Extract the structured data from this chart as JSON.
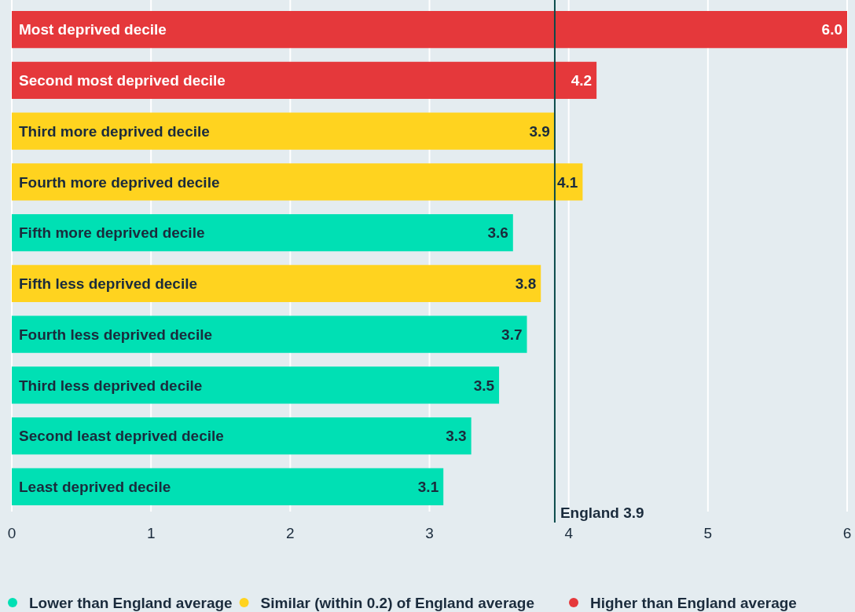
{
  "chart_data": {
    "type": "bar",
    "orientation": "horizontal",
    "stacked": true,
    "categories": [
      "Most deprived decile",
      "Second most deprived decile",
      "Third more deprived decile",
      "Fourth more deprived decile",
      "Fifth more deprived decile",
      "Fifth less deprived decile",
      "Fourth less deprived decile",
      "Third less deprived decile",
      "Second least deprived decile",
      "Least deprived decile"
    ],
    "series": [
      {
        "name": "Lower than England average",
        "color": "#00e0b4",
        "values": [
          null,
          null,
          null,
          null,
          3.6,
          null,
          3.7,
          3.5,
          3.3,
          3.1
        ],
        "value_labels": [
          null,
          null,
          null,
          null,
          "3.6",
          null,
          "3.7",
          "3.5",
          "3.3",
          "3.1"
        ]
      },
      {
        "name": "Similar (within 0.2) of England average",
        "color": "#ffd31f",
        "values": [
          null,
          null,
          3.9,
          4.1,
          null,
          3.8,
          null,
          null,
          null,
          null
        ],
        "value_labels": [
          null,
          null,
          "3.9",
          "4.1",
          null,
          "3.8",
          null,
          null,
          null,
          null
        ]
      },
      {
        "name": "Higher than England average",
        "color": "#e5383b",
        "values": [
          6.0,
          4.2,
          null,
          null,
          null,
          null,
          null,
          null,
          null,
          null
        ],
        "value_labels": [
          "6.0",
          "4.2",
          null,
          null,
          null,
          null,
          null,
          null,
          null,
          null
        ]
      }
    ],
    "xlim": [
      0,
      6
    ],
    "xticks": [
      0,
      1,
      2,
      3,
      4,
      5,
      6
    ],
    "grid": "x",
    "legend": "bottom",
    "ref_lines": [
      {
        "axis": "x",
        "value": 3.9,
        "label": "England 3.9",
        "color": "#0b4a4a"
      }
    ]
  }
}
